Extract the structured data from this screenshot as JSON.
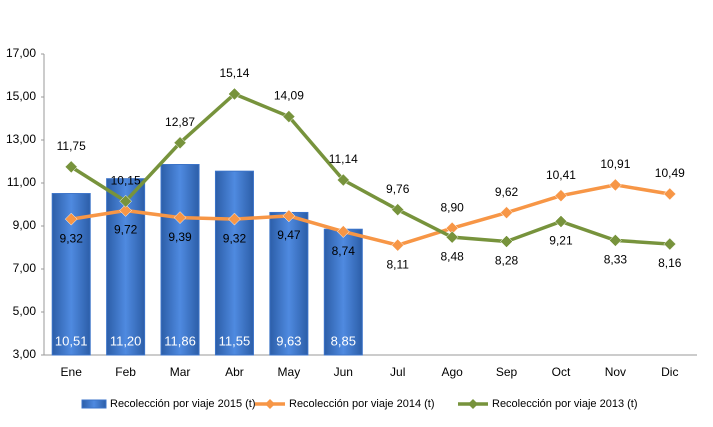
{
  "chart_data": {
    "type": "combo",
    "categories": [
      "Ene",
      "Feb",
      "Mar",
      "Abr",
      "May",
      "Jun",
      "Jul",
      "Ago",
      "Sep",
      "Oct",
      "Nov",
      "Dic"
    ],
    "ylim": [
      3,
      17
    ],
    "yticks": [
      {
        "value": 3,
        "label": "3,00"
      },
      {
        "value": 5,
        "label": "5,00"
      },
      {
        "value": 7,
        "label": "7,00"
      },
      {
        "value": 9,
        "label": "9,00"
      },
      {
        "value": 11,
        "label": "11,00"
      },
      {
        "value": 13,
        "label": "13,00"
      },
      {
        "value": 15,
        "label": "15,00"
      },
      {
        "value": 17,
        "label": "17,00"
      }
    ],
    "grid": false,
    "legend": "bottom",
    "series": [
      {
        "name": "Recolección por viaje 2015 (t)",
        "type": "bar",
        "color": "#3b73c8",
        "values": [
          10.51,
          11.2,
          11.86,
          11.55,
          9.63,
          8.85,
          null,
          null,
          null,
          null,
          null,
          null
        ],
        "value_labels": [
          "10,51",
          "11,20",
          "11,86",
          "11,55",
          "9,63",
          "8,85",
          null,
          null,
          null,
          null,
          null,
          null
        ]
      },
      {
        "name": "Recolección por viaje 2014 (t)",
        "type": "line",
        "color": "#f79646",
        "values": [
          9.32,
          9.72,
          9.39,
          9.32,
          9.47,
          8.74,
          8.11,
          8.9,
          9.62,
          10.41,
          10.91,
          10.49
        ],
        "value_labels": [
          "9,32",
          "9,72",
          "9,39",
          "9,32",
          "9,47",
          "8,74",
          "8,11",
          "8,90",
          "9,62",
          "10,41",
          "10,91",
          "10,49"
        ]
      },
      {
        "name": "Recolección por viaje 2013 (t)",
        "type": "line",
        "color": "#77933c",
        "values": [
          11.75,
          10.15,
          12.87,
          15.14,
          14.09,
          11.14,
          9.76,
          8.48,
          8.28,
          9.21,
          8.33,
          8.16
        ],
        "value_labels": [
          "11,75",
          "10,15",
          "12,87",
          "15,14",
          "14,09",
          "11,14",
          "9,76",
          "8,48",
          "8,28",
          "9,21",
          "8,33",
          "8,16"
        ]
      }
    ]
  }
}
